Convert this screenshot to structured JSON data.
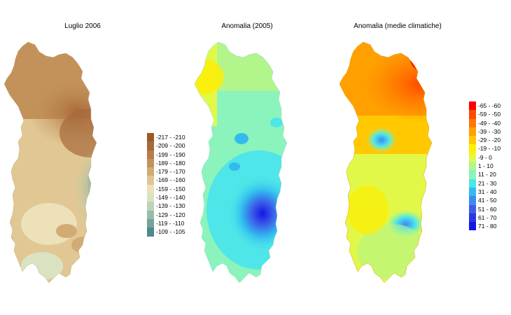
{
  "panels": [
    {
      "id": "luglio",
      "title": "Luglio 2006"
    },
    {
      "id": "anomalia2005",
      "title": "Anomalia (2005)"
    },
    {
      "id": "anomaliamedie",
      "title": "Anomalia (medie climatiche)"
    }
  ],
  "legend_left": {
    "items": [
      {
        "label": "-217 - -210",
        "color": "#9a5a2a"
      },
      {
        "label": "-209 - -200",
        "color": "#a8693a"
      },
      {
        "label": "-199 - -190",
        "color": "#b67d48"
      },
      {
        "label": "-189 - -180",
        "color": "#c3925a"
      },
      {
        "label": "-179 - -170",
        "color": "#d2ab74"
      },
      {
        "label": "-169 - -160",
        "color": "#e0c793"
      },
      {
        "label": "-159 - -150",
        "color": "#ece1b8"
      },
      {
        "label": "-149 - -140",
        "color": "#d9e3c2"
      },
      {
        "label": "-139 - -130",
        "color": "#bcd3b8"
      },
      {
        "label": "-129 - -120",
        "color": "#98bcaa"
      },
      {
        "label": "-119 - -110",
        "color": "#72a39c"
      },
      {
        "label": "-109 - -105",
        "color": "#4f8a8e"
      }
    ]
  },
  "legend_right": {
    "items": [
      {
        "label": "-65 - -60",
        "color": "#ff0000"
      },
      {
        "label": "-59 - -50",
        "color": "#ff4a00"
      },
      {
        "label": "-49 - -40",
        "color": "#ff7800"
      },
      {
        "label": "-39 - -30",
        "color": "#ffa000"
      },
      {
        "label": "-29 - -20",
        "color": "#ffc800"
      },
      {
        "label": "-19 - -10",
        "color": "#ffee00"
      },
      {
        "label": "-9 - 0",
        "color": "#e2f848"
      },
      {
        "label": "1 - 10",
        "color": "#b2f58a"
      },
      {
        "label": "11 - 20",
        "color": "#8af4bc"
      },
      {
        "label": "21 - 30",
        "color": "#4ee6e8"
      },
      {
        "label": "31 - 40",
        "color": "#33bbf0"
      },
      {
        "label": "41 - 50",
        "color": "#3d8cf0"
      },
      {
        "label": "51 - 60",
        "color": "#3b5ee8"
      },
      {
        "label": "61 - 70",
        "color": "#2d36e0"
      },
      {
        "label": "71 - 80",
        "color": "#1515e8"
      }
    ]
  }
}
